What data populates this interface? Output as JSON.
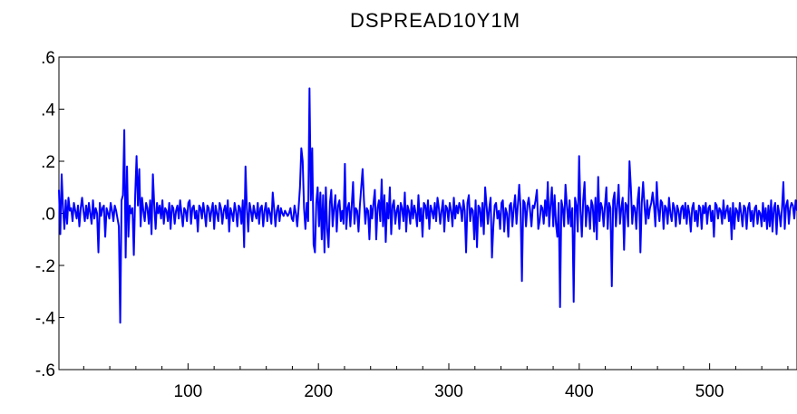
{
  "chart_data": {
    "type": "line",
    "title": "DSPREAD10Y1M",
    "xlabel": "",
    "ylabel": "",
    "xlim": [
      1,
      567
    ],
    "ylim": [
      -0.6,
      0.6
    ],
    "x_ticks": [
      100,
      200,
      300,
      400,
      500
    ],
    "x_tick_labels": [
      "100",
      "200",
      "300",
      "400",
      "500"
    ],
    "y_ticks": [
      0.6,
      0.4,
      0.2,
      0.0,
      -0.2,
      -0.4,
      -0.6
    ],
    "y_tick_labels": [
      ".6",
      ".4",
      ".2",
      ".0",
      "-.2",
      "-.4",
      "-.6"
    ],
    "grid": false,
    "line_color": "#0000ff",
    "series": [
      {
        "x_start": 1,
        "values": [
          0.09,
          -0.08,
          0.15,
          0.02,
          -0.06,
          0.05,
          -0.04,
          0.06,
          0.01,
          0.02,
          -0.03,
          0.04,
          0.01,
          -0.02,
          0.03,
          -0.05,
          0.02,
          0.06,
          0.01,
          -0.03,
          0.03,
          -0.02,
          0.04,
          0.0,
          -0.04,
          0.05,
          -0.02,
          0.02,
          0.0,
          -0.15,
          0.04,
          -0.01,
          0.02,
          0.03,
          -0.09,
          0.02,
          0.0,
          -0.02,
          0.04,
          0.01,
          -0.03,
          0.03,
          0.01,
          -0.02,
          -0.05,
          -0.42,
          0.05,
          0.07,
          0.32,
          -0.17,
          0.18,
          -0.09,
          0.03,
          0.0,
          0.02,
          -0.16,
          0.07,
          0.22,
          0.03,
          0.17,
          -0.05,
          0.06,
          0.01,
          -0.03,
          0.04,
          0.02,
          -0.04,
          0.05,
          -0.08,
          0.15,
          0.03,
          -0.06,
          0.04,
          0.0,
          0.03,
          -0.02,
          0.05,
          -0.04,
          0.02,
          0.01,
          -0.03,
          0.04,
          -0.06,
          0.03,
          0.02,
          -0.04,
          0.01,
          0.03,
          -0.02,
          0.05,
          0.0,
          -0.05,
          0.02,
          0.01,
          -0.03,
          0.04,
          0.05,
          -0.04,
          0.02,
          0.03,
          -0.02,
          0.01,
          -0.07,
          0.03,
          0.02,
          -0.02,
          0.04,
          0.0,
          -0.05,
          0.03,
          0.02,
          -0.03,
          0.01,
          0.04,
          -0.06,
          0.03,
          0.0,
          -0.03,
          0.04,
          0.02,
          -0.04,
          0.01,
          0.03,
          -0.02,
          0.05,
          -0.07,
          0.02,
          0.0,
          -0.03,
          0.04,
          0.01,
          -0.05,
          0.03,
          0.02,
          -0.04,
          0.05,
          -0.13,
          0.18,
          0.02,
          -0.07,
          0.04,
          0.01,
          -0.03,
          0.03,
          0.0,
          -0.02,
          0.04,
          -0.04,
          0.02,
          0.03,
          -0.05,
          0.01,
          0.04,
          -0.03,
          0.02,
          0.0,
          -0.04,
          0.08,
          0.02,
          -0.05,
          0.01,
          0.03,
          -0.03,
          0.02,
          0.0,
          -0.01,
          0.01,
          0.0,
          -0.01,
          0.0,
          0.02,
          -0.02,
          -0.03,
          0.03,
          0.0,
          -0.05,
          0.02,
          0.1,
          0.25,
          0.2,
          0.02,
          -0.06,
          0.04,
          -0.03,
          0.48,
          0.05,
          0.25,
          -0.12,
          -0.15,
          0.04,
          0.1,
          -0.05,
          0.08,
          -0.1,
          0.07,
          -0.15,
          0.1,
          -0.06,
          -0.13,
          0.04,
          0.09,
          -0.05,
          0.02,
          0.07,
          -0.07,
          0.03,
          0.05,
          -0.03,
          0.01,
          -0.04,
          0.19,
          -0.06,
          0.02,
          0.04,
          -0.05,
          0.03,
          0.12,
          -0.04,
          0.02,
          0.01,
          -0.07,
          0.03,
          0.1,
          0.17,
          0.05,
          -0.04,
          0.02,
          0.01,
          -0.1,
          0.03,
          -0.02,
          0.04,
          0.09,
          -0.1,
          0.02,
          0.05,
          -0.03,
          0.13,
          -0.05,
          0.07,
          -0.11,
          0.04,
          -0.02,
          0.1,
          -0.08,
          0.03,
          0.05,
          -0.04,
          0.01,
          0.03,
          -0.06,
          0.04,
          0.02,
          -0.03,
          0.08,
          -0.07,
          0.03,
          0.01,
          -0.04,
          0.05,
          -0.02,
          0.03,
          0.0,
          -0.05,
          0.07,
          -0.03,
          0.02,
          -0.09,
          0.04,
          0.03,
          -0.02,
          0.05,
          -0.06,
          0.03,
          0.01,
          -0.02,
          0.04,
          -0.03,
          0.06,
          0.02,
          -0.04,
          0.01,
          0.05,
          -0.07,
          0.03,
          0.02,
          -0.03,
          0.04,
          0.01,
          -0.05,
          0.06,
          -0.02,
          0.03,
          0.0,
          0.04,
          0.02,
          -0.03,
          0.05,
          0.01,
          -0.15,
          0.04,
          0.07,
          -0.03,
          0.02,
          0.01,
          -0.1,
          0.05,
          -0.13,
          0.03,
          0.02,
          -0.05,
          0.04,
          -0.08,
          0.1,
          0.03,
          -0.04,
          0.02,
          0.06,
          -0.17,
          -0.05,
          0.03,
          0.04,
          -0.02,
          0.01,
          -0.06,
          0.04,
          0.05,
          -0.07,
          0.02,
          0.0,
          -0.09,
          0.03,
          0.04,
          -0.05,
          0.02,
          0.07,
          -0.04,
          0.03,
          0.11,
          0.02,
          -0.26,
          0.05,
          0.04,
          -0.05,
          0.03,
          0.06,
          0.01,
          -0.05,
          0.03,
          0.02,
          0.05,
          0.09,
          -0.06,
          -0.03,
          0.03,
          0.02,
          -0.04,
          0.05,
          -0.01,
          0.12,
          -0.05,
          0.03,
          0.1,
          -0.05,
          0.07,
          -0.04,
          -0.09,
          0.04,
          -0.36,
          0.05,
          0.02,
          -0.05,
          0.11,
          0.03,
          -0.04,
          0.05,
          -0.05,
          0.02,
          -0.34,
          0.06,
          0.03,
          -0.07,
          0.22,
          0.01,
          -0.09,
          0.05,
          0.12,
          -0.05,
          0.03,
          0.02,
          -0.06,
          0.05,
          0.03,
          -0.07,
          0.06,
          -0.1,
          0.14,
          -0.03,
          0.04,
          0.02,
          -0.05,
          0.03,
          0.1,
          -0.06,
          0.04,
          0.02,
          -0.28,
          0.05,
          0.08,
          -0.05,
          0.03,
          0.11,
          -0.04,
          0.02,
          0.06,
          -0.14,
          0.04,
          0.03,
          -0.05,
          0.2,
          0.1,
          -0.04,
          0.03,
          0.02,
          -0.06,
          0.05,
          0.1,
          -0.15,
          0.04,
          0.12,
          0.03,
          -0.04,
          0.05,
          -0.02,
          0.02,
          0.04,
          0.08,
          0.03,
          -0.05,
          0.12,
          0.02,
          -0.03,
          0.05,
          0.04,
          -0.06,
          0.03,
          0.02,
          -0.04,
          0.06,
          0.0,
          -0.03,
          0.04,
          0.02,
          -0.05,
          0.03,
          0.01,
          -0.04,
          0.02,
          0.03,
          -0.02,
          0.04,
          -0.04,
          0.03,
          0.0,
          -0.07,
          0.02,
          0.04,
          -0.03,
          0.01,
          -0.05,
          0.03,
          0.02,
          -0.06,
          0.03,
          0.0,
          0.04,
          -0.04,
          0.02,
          0.03,
          -0.03,
          0.01,
          -0.09,
          0.04,
          0.03,
          -0.02,
          0.02,
          0.01,
          -0.04,
          0.05,
          -0.02,
          0.01,
          0.03,
          -0.03,
          0.02,
          -0.1,
          0.04,
          -0.06,
          0.02,
          0.01,
          -0.03,
          0.04,
          0.0,
          -0.05,
          0.03,
          0.02,
          -0.06,
          0.02,
          0.04,
          -0.03,
          0.01,
          -0.05,
          0.02,
          0.03,
          -0.04,
          0.01,
          0.0,
          -0.05,
          0.04,
          -0.03,
          0.02,
          -0.06,
          0.03,
          -0.05,
          0.05,
          -0.07,
          0.02,
          0.04,
          -0.08,
          0.03,
          0.0,
          -0.05,
          0.02,
          0.12,
          -0.06,
          0.03,
          0.05,
          -0.04,
          0.02,
          0.04,
          0.03,
          -0.02,
          0.05,
          0.01
        ]
      }
    ]
  }
}
